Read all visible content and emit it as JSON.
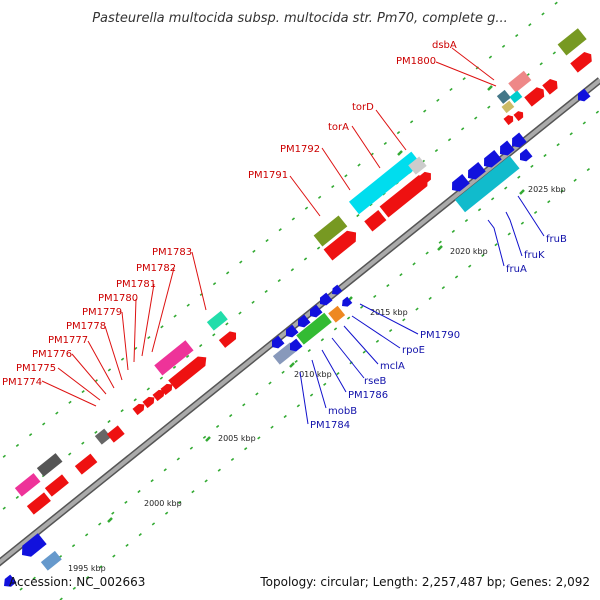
{
  "title": "Pasteurella multocida subsp. multocida str. Pm70, complete g...",
  "footer": {
    "accession": "Accession: NC_002663",
    "topology": "Topology: circular; Length: 2,257,487 bp; Genes: 2,092"
  },
  "colors": {
    "track": "#999999",
    "forward_gene": "#ee1111",
    "reverse_gene": "#1111dd",
    "forward_label": "#cc0000",
    "reverse_label": "#1111aa",
    "tick_dot": "#228822"
  },
  "ticks": [
    "1995 kbp",
    "2000 kbp",
    "2005 kbp",
    "2010 kbp",
    "2015 kbp",
    "2020 kbp",
    "2025 kbp"
  ],
  "labels_forward": [
    "PM1774",
    "PM1775",
    "PM1776",
    "PM1777",
    "PM1778",
    "PM1779",
    "PM1780",
    "PM1781",
    "PM1782",
    "PM1783",
    "PM1791",
    "PM1792",
    "torA",
    "torD",
    "PM1800",
    "dsbA"
  ],
  "labels_reverse": [
    "PM1784",
    "mobB",
    "PM1786",
    "rseB",
    "mclA",
    "rpoE",
    "PM1790",
    "fruA",
    "fruK",
    "fruB"
  ]
}
